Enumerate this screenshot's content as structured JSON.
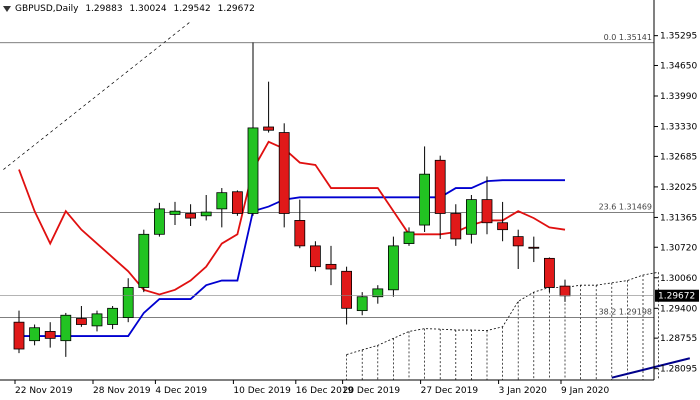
{
  "header": {
    "symbol": "GBPUSD,Daily",
    "ohlc": [
      "1.29883",
      "1.30024",
      "1.29542",
      "1.29672"
    ]
  },
  "fib_levels": [
    {
      "label": "0.0 1.35141",
      "price": 1.35141
    },
    {
      "label": "23.6 1.31469",
      "price": 1.31469
    },
    {
      "label": "38.2 1.29198",
      "price": 1.29198
    }
  ],
  "current_price": {
    "label": "1.29672",
    "price": 1.29672
  },
  "colors": {
    "bull": "#22c322",
    "bear": "#e01919",
    "wick": "#000000",
    "blue_line": "#0000d0",
    "red_line": "#e01010",
    "grid_text": "#000000",
    "cloud": "#000000"
  },
  "chart_data": {
    "type": "candlestick",
    "title": "GBPUSD,Daily",
    "ylim": [
      1.2785,
      1.3559
    ],
    "y_ticks": [
      "1.35295",
      "1.34650",
      "1.33990",
      "1.33330",
      "1.32685",
      "1.32025",
      "1.31365",
      "1.30720",
      "1.30060",
      "1.29400",
      "1.28755",
      "1.28095"
    ],
    "x_ticks": [
      "22 Nov 2019",
      "28 Nov 2019",
      "4 Dec 2019",
      "10 Dec 2019",
      "16 Dec 2019",
      "20 Dec 2019",
      "27 Dec 2019",
      "3 Jan 2020",
      "9 Jan 2020"
    ],
    "candles": [
      {
        "o": 1.291,
        "h": 1.2935,
        "l": 1.2843,
        "c": 1.2852
      },
      {
        "o": 1.287,
        "h": 1.2905,
        "l": 1.286,
        "c": 1.2898
      },
      {
        "o": 1.289,
        "h": 1.291,
        "l": 1.2855,
        "c": 1.2875
      },
      {
        "o": 1.287,
        "h": 1.293,
        "l": 1.2835,
        "c": 1.2925
      },
      {
        "o": 1.2918,
        "h": 1.2945,
        "l": 1.29,
        "c": 1.2905
      },
      {
        "o": 1.2902,
        "h": 1.2935,
        "l": 1.289,
        "c": 1.2928
      },
      {
        "o": 1.2905,
        "h": 1.2945,
        "l": 1.2895,
        "c": 1.294
      },
      {
        "o": 1.292,
        "h": 1.3005,
        "l": 1.291,
        "c": 1.2985
      },
      {
        "o": 1.2985,
        "h": 1.311,
        "l": 1.2975,
        "c": 1.31
      },
      {
        "o": 1.31,
        "h": 1.3168,
        "l": 1.3095,
        "c": 1.3155
      },
      {
        "o": 1.3143,
        "h": 1.317,
        "l": 1.312,
        "c": 1.315
      },
      {
        "o": 1.3145,
        "h": 1.3165,
        "l": 1.3118,
        "c": 1.3135
      },
      {
        "o": 1.314,
        "h": 1.3185,
        "l": 1.313,
        "c": 1.3148
      },
      {
        "o": 1.3155,
        "h": 1.32,
        "l": 1.3115,
        "c": 1.319
      },
      {
        "o": 1.3192,
        "h": 1.3195,
        "l": 1.314,
        "c": 1.3145
      },
      {
        "o": 1.3145,
        "h": 1.3515,
        "l": 1.314,
        "c": 1.333
      },
      {
        "o": 1.3332,
        "h": 1.343,
        "l": 1.332,
        "c": 1.3325
      },
      {
        "o": 1.332,
        "h": 1.334,
        "l": 1.3115,
        "c": 1.3145
      },
      {
        "o": 1.313,
        "h": 1.3175,
        "l": 1.307,
        "c": 1.3075
      },
      {
        "o": 1.3075,
        "h": 1.3085,
        "l": 1.302,
        "c": 1.303
      },
      {
        "o": 1.3035,
        "h": 1.3075,
        "l": 1.299,
        "c": 1.3025
      },
      {
        "o": 1.302,
        "h": 1.303,
        "l": 1.2905,
        "c": 1.294
      },
      {
        "o": 1.2935,
        "h": 1.2975,
        "l": 1.2925,
        "c": 1.2965
      },
      {
        "o": 1.2965,
        "h": 1.299,
        "l": 1.295,
        "c": 1.2982
      },
      {
        "o": 1.298,
        "h": 1.3095,
        "l": 1.2965,
        "c": 1.3075
      },
      {
        "o": 1.308,
        "h": 1.3115,
        "l": 1.3075,
        "c": 1.3105
      },
      {
        "o": 1.312,
        "h": 1.329,
        "l": 1.3105,
        "c": 1.323
      },
      {
        "o": 1.326,
        "h": 1.327,
        "l": 1.309,
        "c": 1.3145
      },
      {
        "o": 1.3145,
        "h": 1.3165,
        "l": 1.3075,
        "c": 1.309
      },
      {
        "o": 1.31,
        "h": 1.3185,
        "l": 1.308,
        "c": 1.3175
      },
      {
        "o": 1.3175,
        "h": 1.3225,
        "l": 1.31,
        "c": 1.3125
      },
      {
        "o": 1.3125,
        "h": 1.317,
        "l": 1.3085,
        "c": 1.311
      },
      {
        "o": 1.3095,
        "h": 1.311,
        "l": 1.3025,
        "c": 1.3075
      },
      {
        "o": 1.3072,
        "h": 1.3095,
        "l": 1.304,
        "c": 1.307
      },
      {
        "o": 1.3048,
        "h": 1.305,
        "l": 1.2975,
        "c": 1.2985
      },
      {
        "o": 1.2988,
        "h": 1.3002,
        "l": 1.2954,
        "c": 1.2967
      }
    ],
    "series": [
      {
        "name": "",
        "color": "blue",
        "values": [
          1.288,
          1.288,
          1.288,
          1.288,
          1.288,
          1.288,
          1.288,
          1.288,
          1.293,
          1.296,
          1.296,
          1.296,
          1.299,
          1.3,
          1.3,
          1.315,
          1.316,
          1.3175,
          1.318,
          1.318,
          1.318,
          1.318,
          1.318,
          1.318,
          1.318,
          1.318,
          1.318,
          1.318,
          1.32,
          1.32,
          1.3215,
          1.3217,
          1.3217,
          1.3217,
          1.3217,
          1.3217
        ]
      },
      {
        "name": "",
        "color": "red",
        "values": [
          1.324,
          1.315,
          1.308,
          1.315,
          1.311,
          1.308,
          1.305,
          1.302,
          1.298,
          1.297,
          1.298,
          1.3,
          1.303,
          1.308,
          1.31,
          1.324,
          1.33,
          1.3285,
          1.3255,
          1.325,
          1.32,
          1.32,
          1.32,
          1.32,
          1.315,
          1.31,
          1.31,
          1.31,
          1.3105,
          1.312,
          1.313,
          1.313,
          1.315,
          1.3135,
          1.3115,
          1.311
        ]
      }
    ],
    "ichimoku_cloud_top": [
      null,
      null,
      null,
      null,
      null,
      null,
      null,
      null,
      null,
      null,
      null,
      null,
      null,
      null,
      null,
      null,
      null,
      null,
      null,
      null,
      null,
      1.284,
      1.285,
      1.286,
      1.2875,
      1.289,
      1.2896,
      1.2895,
      1.2893,
      1.2893,
      1.2892,
      1.29,
      1.2955,
      1.2975,
      1.2985,
      1.2985,
      1.299,
      1.299,
      1.2995,
      1.3,
      1.3012,
      1.3018
    ],
    "upper_dashed_line": [
      {
        "i": -1,
        "v": 1.324
      },
      {
        "i": 11,
        "v": 1.356
      }
    ],
    "lower_blue_line": [
      {
        "i": 38,
        "v": 1.279
      },
      {
        "i": 43,
        "v": 1.2832
      }
    ]
  }
}
